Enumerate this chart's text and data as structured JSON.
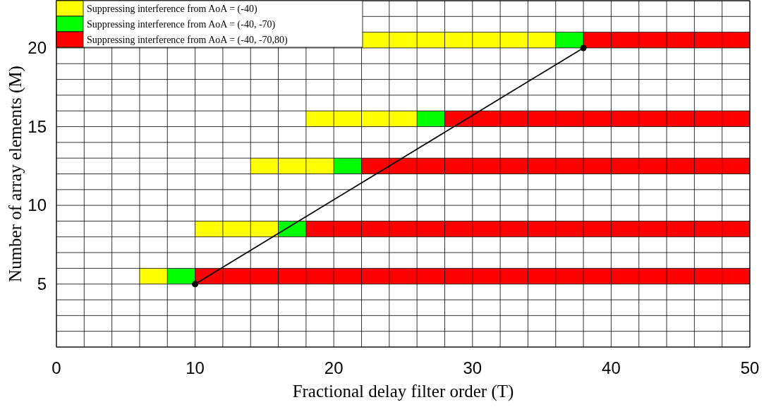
{
  "chart_data": {
    "type": "bar",
    "orientation": "horizontal",
    "xlabel": "Fractional delay filter order (T)",
    "ylabel": "Number of array elements (M)",
    "x": [
      5.5,
      8.5,
      12.5,
      15.5,
      20.5
    ],
    "xlim": [
      0,
      50
    ],
    "xticks": [
      0,
      10,
      20,
      30,
      40,
      50
    ],
    "ylim": [
      1,
      23
    ],
    "yticks": [
      5,
      10,
      15,
      20
    ],
    "grid": true,
    "legend": "top left",
    "series": [
      {
        "name": "Suppressing interference from AoA = (-40)",
        "color": "#ffff00",
        "base": [
          6,
          10,
          14,
          18,
          22
        ],
        "values": [
          2,
          6,
          6,
          8,
          14
        ]
      },
      {
        "name": "Suppressing interference from AoA = (-40, -70)",
        "color": "#00ff00",
        "base": [
          8,
          16,
          20,
          26,
          36
        ],
        "values": [
          2,
          2,
          2,
          2,
          2
        ]
      },
      {
        "name": "Suppressing interference from AoA = (-40, -70,80)",
        "color": "#ff0000",
        "base": [
          10,
          18,
          22,
          28,
          38
        ],
        "values": [
          40,
          32,
          28,
          22,
          12
        ]
      },
      {
        "type": "line",
        "color": "#000000",
        "marker": "circle",
        "x": [
          5,
          20
        ],
        "values": [
          10,
          38
        ]
      }
    ]
  }
}
